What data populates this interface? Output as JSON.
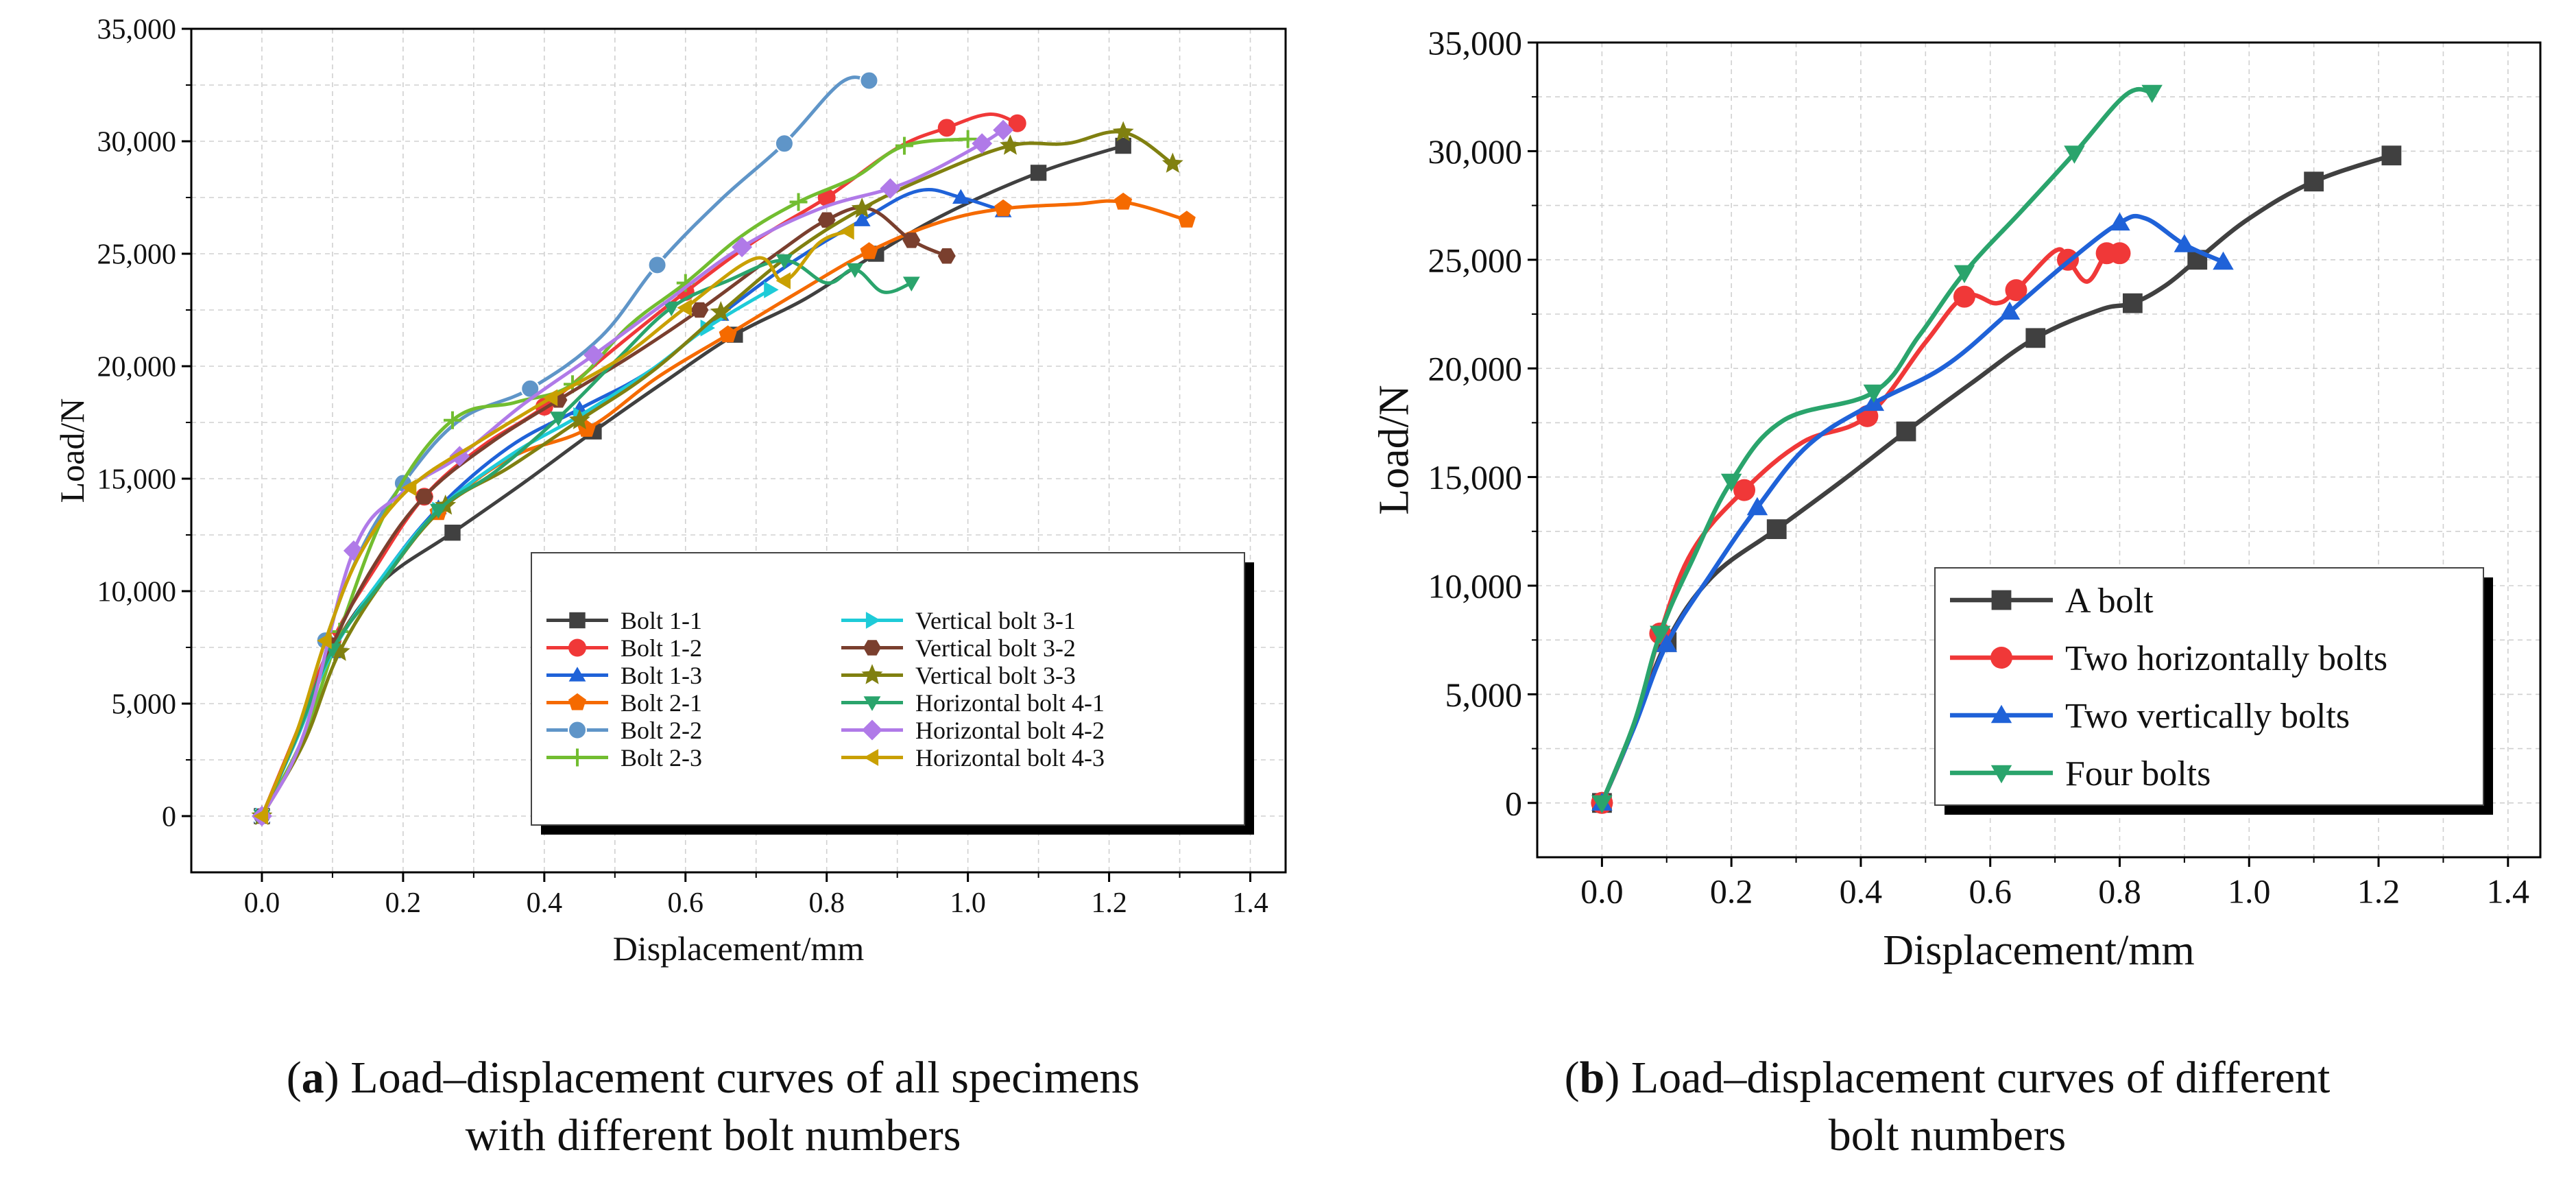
{
  "chart_data": [
    {
      "id": "a",
      "type": "line",
      "caption_letter": "a",
      "caption_text": "Load–displacement curves of all specimens with different bolt numbers",
      "caption_line1": "Load–displacement curves of all specimens",
      "caption_line2": "with different bolt numbers",
      "xlabel": "Displacement/mm",
      "ylabel": "Load/N",
      "xlim": [
        -0.1,
        1.45
      ],
      "ylim": [
        -2500,
        35000
      ],
      "xticks": [
        0.0,
        0.2,
        0.4,
        0.6,
        0.8,
        1.0,
        1.2,
        1.4
      ],
      "xtick_labels": [
        "0.0",
        "0.2",
        "0.4",
        "0.6",
        "0.8",
        "1.0",
        "1.2",
        "1.4"
      ],
      "yticks": [
        0,
        5000,
        10000,
        15000,
        20000,
        25000,
        30000,
        35000
      ],
      "ytick_labels": [
        "0",
        "5,000",
        "10,000",
        "15,000",
        "20,000",
        "25,000",
        "30,000",
        "35,000"
      ],
      "grid": true,
      "legend_position": "bottom-right",
      "legend_columns": 2,
      "series": [
        {
          "name": "Bolt 1-1",
          "color": "#404040",
          "marker": "square",
          "x": [
            0,
            0.05,
            0.1,
            0.17,
            0.27,
            0.37,
            0.47,
            0.57,
            0.67,
            0.77,
            0.87,
            0.97,
            1.1,
            1.22
          ],
          "y": [
            0,
            3600,
            7400,
            10400,
            12600,
            14800,
            17100,
            19300,
            21400,
            23000,
            25000,
            26800,
            28600,
            29800
          ]
        },
        {
          "name": "Bolt 1-2",
          "color": "#f03838",
          "marker": "circle",
          "x": [
            0,
            0.05,
            0.1,
            0.16,
            0.23,
            0.31,
            0.4,
            0.5,
            0.6,
            0.7,
            0.8,
            0.9,
            0.97,
            1.03,
            1.07
          ],
          "y": [
            0,
            3800,
            7800,
            11000,
            14200,
            16400,
            18200,
            20800,
            23300,
            25600,
            27500,
            29700,
            30600,
            31200,
            30800
          ]
        },
        {
          "name": "Bolt 1-3",
          "color": "#1f62d8",
          "marker": "triangle-up",
          "x": [
            0,
            0.05,
            0.1,
            0.17,
            0.25,
            0.35,
            0.45,
            0.55,
            0.65,
            0.75,
            0.85,
            0.93,
            0.99,
            1.05
          ],
          "y": [
            0,
            3500,
            7300,
            10600,
            13700,
            16400,
            18100,
            19800,
            22300,
            24600,
            26500,
            27800,
            27500,
            26900
          ]
        },
        {
          "name": "Bolt 2-1",
          "color": "#f56a00",
          "marker": "pentagon",
          "x": [
            0,
            0.05,
            0.1,
            0.17,
            0.25,
            0.35,
            0.46,
            0.56,
            0.66,
            0.76,
            0.86,
            0.96,
            1.05,
            1.15,
            1.22,
            1.31
          ],
          "y": [
            0,
            3600,
            7400,
            10500,
            13500,
            15900,
            17200,
            19500,
            21400,
            23300,
            25100,
            26400,
            27000,
            27200,
            27300,
            26500
          ]
        },
        {
          "name": "Bolt 2-2",
          "color": "#5f95c8",
          "marker": "sphere",
          "x": [
            0,
            0.05,
            0.09,
            0.14,
            0.2,
            0.28,
            0.38,
            0.48,
            0.56,
            0.65,
            0.74,
            0.82,
            0.86
          ],
          "y": [
            0,
            3700,
            7800,
            11800,
            14800,
            17600,
            19000,
            21300,
            24500,
            27400,
            29900,
            32600,
            32700
          ]
        },
        {
          "name": "Bolt 2-3",
          "color": "#72bd30",
          "marker": "plus",
          "x": [
            0,
            0.06,
            0.11,
            0.18,
            0.27,
            0.36,
            0.44,
            0.52,
            0.6,
            0.68,
            0.76,
            0.84,
            0.91,
            1.0
          ],
          "y": [
            0,
            3600,
            8200,
            13800,
            17600,
            18400,
            19200,
            21800,
            23700,
            25800,
            27300,
            28400,
            29800,
            30100
          ]
        },
        {
          "name": "Vertical bolt 3-1",
          "color": "#1ecbd8",
          "marker": "triangle-right",
          "x": [
            0,
            0.05,
            0.1,
            0.17,
            0.25,
            0.35,
            0.45,
            0.55,
            0.63,
            0.72
          ],
          "y": [
            0,
            3500,
            7300,
            10600,
            13600,
            16000,
            17800,
            19800,
            21700,
            23400
          ]
        },
        {
          "name": "Vertical bolt 3-2",
          "color": "#7a3f2e",
          "marker": "hexagon",
          "x": [
            0,
            0.05,
            0.1,
            0.16,
            0.23,
            0.32,
            0.42,
            0.52,
            0.62,
            0.72,
            0.8,
            0.86,
            0.92,
            0.97
          ],
          "y": [
            0,
            3600,
            7600,
            11200,
            14200,
            16500,
            18500,
            20400,
            22500,
            24800,
            26500,
            27000,
            25600,
            24900
          ]
        },
        {
          "name": "Vertical bolt 3-3",
          "color": "#808010",
          "marker": "star",
          "x": [
            0,
            0.06,
            0.11,
            0.18,
            0.26,
            0.35,
            0.45,
            0.55,
            0.65,
            0.75,
            0.85,
            0.95,
            1.06,
            1.14,
            1.22,
            1.29
          ],
          "y": [
            0,
            3300,
            7300,
            10800,
            13800,
            15500,
            17600,
            19700,
            22400,
            25000,
            27000,
            28500,
            29800,
            29900,
            30400,
            29000
          ]
        },
        {
          "name": "Horizontal bolt 4-1",
          "color": "#2aa46c",
          "marker": "triangle-down",
          "x": [
            0,
            0.05,
            0.1,
            0.17,
            0.25,
            0.33,
            0.42,
            0.5,
            0.58,
            0.66,
            0.74,
            0.8,
            0.84,
            0.88,
            0.92
          ],
          "y": [
            0,
            3600,
            7400,
            10400,
            13600,
            15300,
            17700,
            20200,
            22600,
            23800,
            24700,
            23700,
            24300,
            23300,
            23700
          ]
        },
        {
          "name": "Horizontal bolt 4-2",
          "color": "#b07ae8",
          "marker": "diamond",
          "x": [
            0,
            0.06,
            0.13,
            0.2,
            0.28,
            0.37,
            0.47,
            0.57,
            0.68,
            0.79,
            0.89,
            0.95,
            1.02,
            1.05
          ],
          "y": [
            0,
            3700,
            11800,
            14400,
            16000,
            18300,
            20500,
            22800,
            25300,
            27000,
            27900,
            28700,
            29900,
            30500
          ]
        },
        {
          "name": "Horizontal bolt 4-3",
          "color": "#c9a000",
          "marker": "triangle-left",
          "x": [
            0,
            0.05,
            0.09,
            0.14,
            0.21,
            0.31,
            0.41,
            0.51,
            0.6,
            0.7,
            0.74,
            0.79,
            0.83
          ],
          "y": [
            0,
            3800,
            7800,
            11700,
            14600,
            16700,
            18600,
            20400,
            22600,
            24800,
            23800,
            25500,
            26000
          ]
        }
      ]
    },
    {
      "id": "b",
      "type": "line",
      "caption_letter": "b",
      "caption_text": "Load–displacement curves of different bolt numbers",
      "caption_line1": "Load–displacement curves of different",
      "caption_line2": "bolt numbers",
      "xlabel": "Displacement/mm",
      "ylabel": "Load/N",
      "xlim": [
        -0.1,
        1.45
      ],
      "ylim": [
        -2500,
        35000
      ],
      "xticks": [
        0.0,
        0.2,
        0.4,
        0.6,
        0.8,
        1.0,
        1.2,
        1.4
      ],
      "xtick_labels": [
        "0.0",
        "0.2",
        "0.4",
        "0.6",
        "0.8",
        "1.0",
        "1.2",
        "1.4"
      ],
      "yticks": [
        0,
        5000,
        10000,
        15000,
        20000,
        25000,
        30000,
        35000
      ],
      "ytick_labels": [
        "0",
        "5,000",
        "10,000",
        "15,000",
        "20,000",
        "25,000",
        "30,000",
        "35,000"
      ],
      "grid": true,
      "legend_position": "bottom-right",
      "legend_columns": 1,
      "series": [
        {
          "name": "A bolt",
          "color": "#404040",
          "marker": "square",
          "x": [
            0,
            0.05,
            0.1,
            0.17,
            0.27,
            0.37,
            0.47,
            0.57,
            0.67,
            0.77,
            0.82,
            0.87,
            0.92,
            1.0,
            1.1,
            1.22
          ],
          "y": [
            0,
            3600,
            7400,
            10400,
            12600,
            14800,
            17100,
            19300,
            21400,
            22700,
            23000,
            23800,
            25000,
            26900,
            28600,
            29800
          ]
        },
        {
          "name": "Two horizontally bolts",
          "color": "#f03838",
          "marker": "circle",
          "x": [
            0,
            0.05,
            0.09,
            0.14,
            0.22,
            0.31,
            0.41,
            0.5,
            0.56,
            0.61,
            0.64,
            0.7,
            0.72,
            0.75,
            0.78,
            0.8
          ],
          "y": [
            0,
            3600,
            7800,
            11600,
            14400,
            16600,
            17800,
            21200,
            23300,
            23000,
            23600,
            25400,
            25000,
            24000,
            25300,
            25300
          ]
        },
        {
          "name": "Two vertically bolts",
          "color": "#1f62d8",
          "marker": "triangle-up",
          "x": [
            0,
            0.05,
            0.1,
            0.17,
            0.24,
            0.32,
            0.42,
            0.53,
            0.63,
            0.72,
            0.8,
            0.84,
            0.9,
            0.96
          ],
          "y": [
            0,
            3500,
            7300,
            10600,
            13600,
            16500,
            18400,
            20100,
            22600,
            24900,
            26700,
            26900,
            25700,
            24900
          ]
        },
        {
          "name": "Four bolts",
          "color": "#2aa46c",
          "marker": "triangle-down",
          "x": [
            0,
            0.05,
            0.09,
            0.14,
            0.2,
            0.28,
            0.42,
            0.49,
            0.56,
            0.65,
            0.73,
            0.81,
            0.85
          ],
          "y": [
            0,
            3700,
            7800,
            11200,
            14800,
            17600,
            18900,
            21500,
            24400,
            27300,
            29900,
            32600,
            32700
          ]
        }
      ]
    }
  ]
}
